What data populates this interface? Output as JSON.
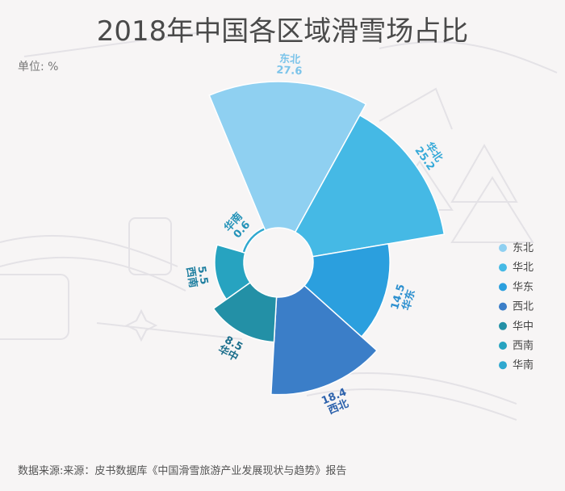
{
  "title": "2018年中国各区域滑雪场占比",
  "unit": "单位: %",
  "source": "数据来源:来源：皮书数据库《中国滑雪旅游产业发展现状与趋势》报告",
  "chart_data": {
    "type": "pie",
    "subtype": "rose",
    "title": "2018年中国各区域滑雪场占比",
    "unit": "%",
    "categories": [
      "东北",
      "华北",
      "华东",
      "西北",
      "华中",
      "西南",
      "华南"
    ],
    "values": [
      27.6,
      25.2,
      14.5,
      18.4,
      8.5,
      5.5,
      0.6
    ],
    "value_labels": [
      "27.6",
      "25.2",
      "14.5",
      "18.4",
      "8.5",
      "5.5",
      "0.6"
    ],
    "colors": [
      "#8fd0f1",
      "#45b9e5",
      "#2b9fde",
      "#3b7ec8",
      "#2390a6",
      "#27a3c0",
      "#2fa8cf"
    ],
    "label_colors": [
      "#7cc4ea",
      "#35a9d8",
      "#2b8fcf",
      "#2d62ac",
      "#1d6f8c",
      "#1f7fa0",
      "#2392b8"
    ],
    "legend_position": "right"
  }
}
